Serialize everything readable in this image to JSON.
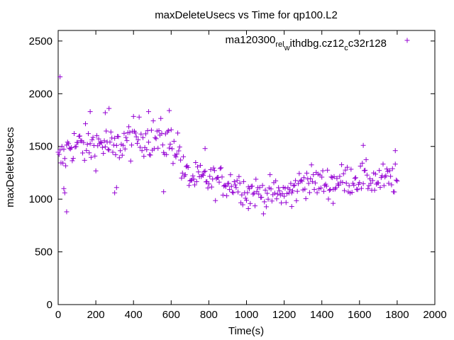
{
  "chart_data": {
    "type": "scatter",
    "title": "maxDeleteUsecs vs Time for qp100.L2",
    "xlabel": "Time(s)",
    "ylabel": "maxDeleteUsecs",
    "xlim": [
      0,
      2000
    ],
    "ylim": [
      0,
      2600
    ],
    "xticks": [
      0,
      200,
      400,
      600,
      800,
      1000,
      1200,
      1400,
      1600,
      1800,
      2000
    ],
    "yticks": [
      0,
      500,
      1000,
      1500,
      2000,
      2500
    ],
    "grid": false,
    "legend_position": "top-right",
    "marker": "+",
    "series_color": "#9400d3",
    "legend": {
      "base1": "ma120300",
      "sub1": "rel",
      "base2": "",
      "sub2": "w",
      "base3": "ithdbg.cz12",
      "sub3": "c",
      "base4": "c32r128"
    },
    "series": [
      {
        "name": "ma120300_rel_withdbg.cz12c_c32r128",
        "step_s": 5,
        "x_start": 0,
        "trend": [
          [
            0,
            1350
          ],
          [
            40,
            1420
          ],
          [
            60,
            1520
          ],
          [
            150,
            1500
          ],
          [
            250,
            1530
          ],
          [
            300,
            1450
          ],
          [
            330,
            1530
          ],
          [
            450,
            1600
          ],
          [
            550,
            1560
          ],
          [
            640,
            1500
          ],
          [
            660,
            1270
          ],
          [
            700,
            1200
          ],
          [
            800,
            1180
          ],
          [
            900,
            1160
          ],
          [
            950,
            1150
          ],
          [
            1000,
            1080
          ],
          [
            1100,
            1050
          ],
          [
            1200,
            1050
          ],
          [
            1260,
            1100
          ],
          [
            1300,
            1180
          ],
          [
            1400,
            1150
          ],
          [
            1500,
            1180
          ],
          [
            1600,
            1200
          ],
          [
            1700,
            1180
          ],
          [
            1800,
            1190
          ]
        ],
        "outliers": [
          [
            10,
            2160
          ],
          [
            30,
            1100
          ],
          [
            35,
            1060
          ],
          [
            45,
            880
          ],
          [
            270,
            1860
          ],
          [
            250,
            1820
          ],
          [
            170,
            1830
          ],
          [
            300,
            1060
          ],
          [
            310,
            1110
          ],
          [
            480,
            1830
          ],
          [
            590,
            1840
          ],
          [
            560,
            1070
          ],
          [
            780,
            1480
          ],
          [
            1010,
            910
          ],
          [
            1240,
            930
          ],
          [
            1460,
            960
          ],
          [
            1620,
            1510
          ],
          [
            1790,
            1460
          ]
        ]
      }
    ]
  }
}
